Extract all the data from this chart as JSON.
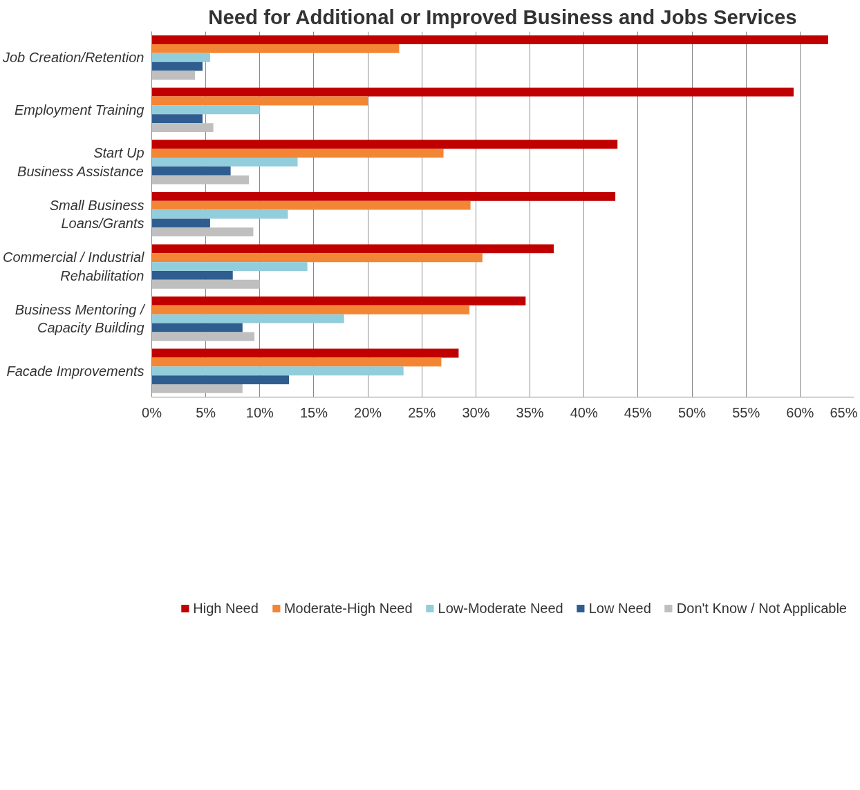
{
  "chart_data": {
    "type": "bar",
    "orientation": "horizontal",
    "title": "Need for Additional or Improved Business and Jobs Services",
    "categories": [
      "Job Creation/Retention",
      "Employment Training",
      "Start Up\nBusiness Assistance",
      "Small Business\nLoans/Grants",
      "Commercial / Industrial\nRehabilitation",
      "Business Mentoring /\nCapacity Building",
      "Facade Improvements"
    ],
    "series": [
      {
        "name": "High Need",
        "color": "#c00000",
        "values": [
          62.6,
          59.4,
          43.1,
          42.9,
          37.2,
          34.6,
          28.4
        ]
      },
      {
        "name": "Moderate-High Need",
        "color": "#f38634",
        "values": [
          22.9,
          20.0,
          27.0,
          29.5,
          30.6,
          29.4,
          26.8
        ]
      },
      {
        "name": "Low-Moderate Need",
        "color": "#92cddc",
        "values": [
          5.4,
          10.0,
          13.5,
          12.6,
          14.4,
          17.8,
          23.3
        ]
      },
      {
        "name": "Low Need",
        "color": "#2f5d8f",
        "values": [
          4.7,
          4.7,
          7.3,
          5.4,
          7.5,
          8.4,
          12.7
        ]
      },
      {
        "name": "Don't Know / Not Applicable",
        "color": "#bfbfbf",
        "values": [
          4.0,
          5.7,
          9.0,
          9.4,
          10.0,
          9.5,
          8.4
        ]
      }
    ],
    "xlim": [
      0,
      65
    ],
    "xticks": [
      {
        "value": 0,
        "label": "0%"
      },
      {
        "value": 5,
        "label": "5%"
      },
      {
        "value": 10,
        "label": "10%"
      },
      {
        "value": 15,
        "label": "15%"
      },
      {
        "value": 20,
        "label": "20%"
      },
      {
        "value": 25,
        "label": "25%"
      },
      {
        "value": 30,
        "label": "30%"
      },
      {
        "value": 35,
        "label": "35%"
      },
      {
        "value": 40,
        "label": "40%"
      },
      {
        "value": 45,
        "label": "45%"
      },
      {
        "value": 50,
        "label": "50%"
      },
      {
        "value": 55,
        "label": "55%"
      },
      {
        "value": 60,
        "label": "60%"
      },
      {
        "value": 65,
        "label": "65%"
      }
    ],
    "grid": "x",
    "legend": "bottom"
  }
}
